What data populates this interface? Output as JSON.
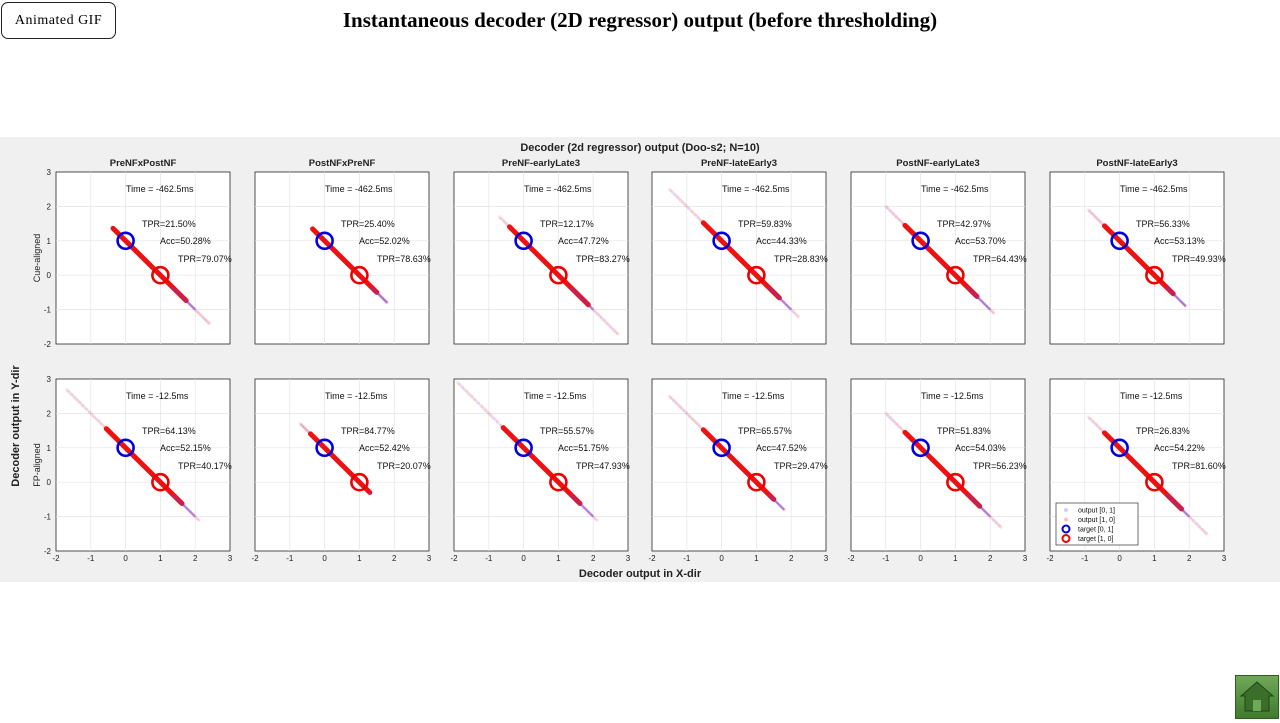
{
  "page": {
    "title": "Instantaneous decoder (2D regressor) output (before thresholding)",
    "gif_button_label": "Animated  GIF",
    "home_icon": "home-icon"
  },
  "chart_data": {
    "type": "scatter",
    "title": "Decoder (2d regressor) output (Doo-s2; N=10)",
    "xlabel": "Decoder output in X-dir",
    "ylabel": "Decoder output in Y-dir",
    "xlim": [
      -2,
      3
    ],
    "ylim": [
      -2,
      3
    ],
    "xticks": [
      "-2",
      "-1",
      "0",
      "1",
      "2",
      "3"
    ],
    "yticks": [
      "-2",
      "-1",
      "0",
      "1",
      "2",
      "3"
    ],
    "grid": true,
    "columns": [
      "PreNFxPostNF",
      "PostNFxPreNF",
      "PreNF-earlyLate3",
      "PreNF-lateEarly3",
      "PostNF-earlyLate3",
      "PostNF-lateEarly3"
    ],
    "rows": [
      {
        "label": "Cue-aligned",
        "time": "Time = -462.5ms",
        "panels": [
          {
            "tpr1": "TPR=21.50%",
            "acc": "Acc=50.28%",
            "tpr2": "TPR=79.07%",
            "span": [
              -0.4,
              2.4
            ]
          },
          {
            "tpr1": "TPR=25.40%",
            "acc": "Acc=52.02%",
            "tpr2": "TPR=78.63%",
            "span": [
              -0.3,
              1.8
            ]
          },
          {
            "tpr1": "TPR=12.17%",
            "acc": "Acc=47.72%",
            "tpr2": "TPR=83.27%",
            "span": [
              -0.7,
              2.7
            ]
          },
          {
            "tpr1": "TPR=59.83%",
            "acc": "Acc=44.33%",
            "tpr2": "TPR=28.83%",
            "span": [
              -1.5,
              2.2
            ]
          },
          {
            "tpr1": "TPR=42.97%",
            "acc": "Acc=53.70%",
            "tpr2": "TPR=64.43%",
            "span": [
              -1.0,
              2.1
            ]
          },
          {
            "tpr1": "TPR=56.33%",
            "acc": "Acc=53.13%",
            "tpr2": "TPR=49.93%",
            "span": [
              -0.9,
              1.9
            ]
          }
        ]
      },
      {
        "label": "FP-aligned",
        "time": "Time = -12.5ms",
        "panels": [
          {
            "tpr1": "TPR=64.13%",
            "acc": "Acc=52.15%",
            "tpr2": "TPR=40.17%",
            "span": [
              -1.7,
              2.1
            ]
          },
          {
            "tpr1": "TPR=84.77%",
            "acc": "Acc=52.42%",
            "tpr2": "TPR=20.07%",
            "span": [
              -0.7,
              1.3
            ]
          },
          {
            "tpr1": "TPR=55.57%",
            "acc": "Acc=51.75%",
            "tpr2": "TPR=47.93%",
            "span": [
              -1.9,
              2.1
            ]
          },
          {
            "tpr1": "TPR=65.57%",
            "acc": "Acc=47.52%",
            "tpr2": "TPR=29.47%",
            "span": [
              -1.5,
              1.8
            ]
          },
          {
            "tpr1": "TPR=51.83%",
            "acc": "Acc=54.03%",
            "tpr2": "TPR=56.23%",
            "span": [
              -1.0,
              2.3
            ]
          },
          {
            "tpr1": "TPR=26.83%",
            "acc": "Acc=54.22%",
            "tpr2": "TPR=81.60%",
            "span": [
              -0.9,
              2.5
            ]
          }
        ]
      }
    ],
    "targets": [
      {
        "label": "target [0, 1]",
        "x": 0,
        "y": 1,
        "color": "#0000dd"
      },
      {
        "label": "target [1, 0]",
        "x": 1,
        "y": 0,
        "color": "#ee0000"
      }
    ],
    "outputs": [
      {
        "label": "output [0, 1]",
        "color": "#6060ff"
      },
      {
        "label": "output [1, 0]",
        "color": "#ff3030"
      }
    ],
    "legend": {
      "placement": "bottom-left",
      "panel": "row2-col6"
    }
  }
}
